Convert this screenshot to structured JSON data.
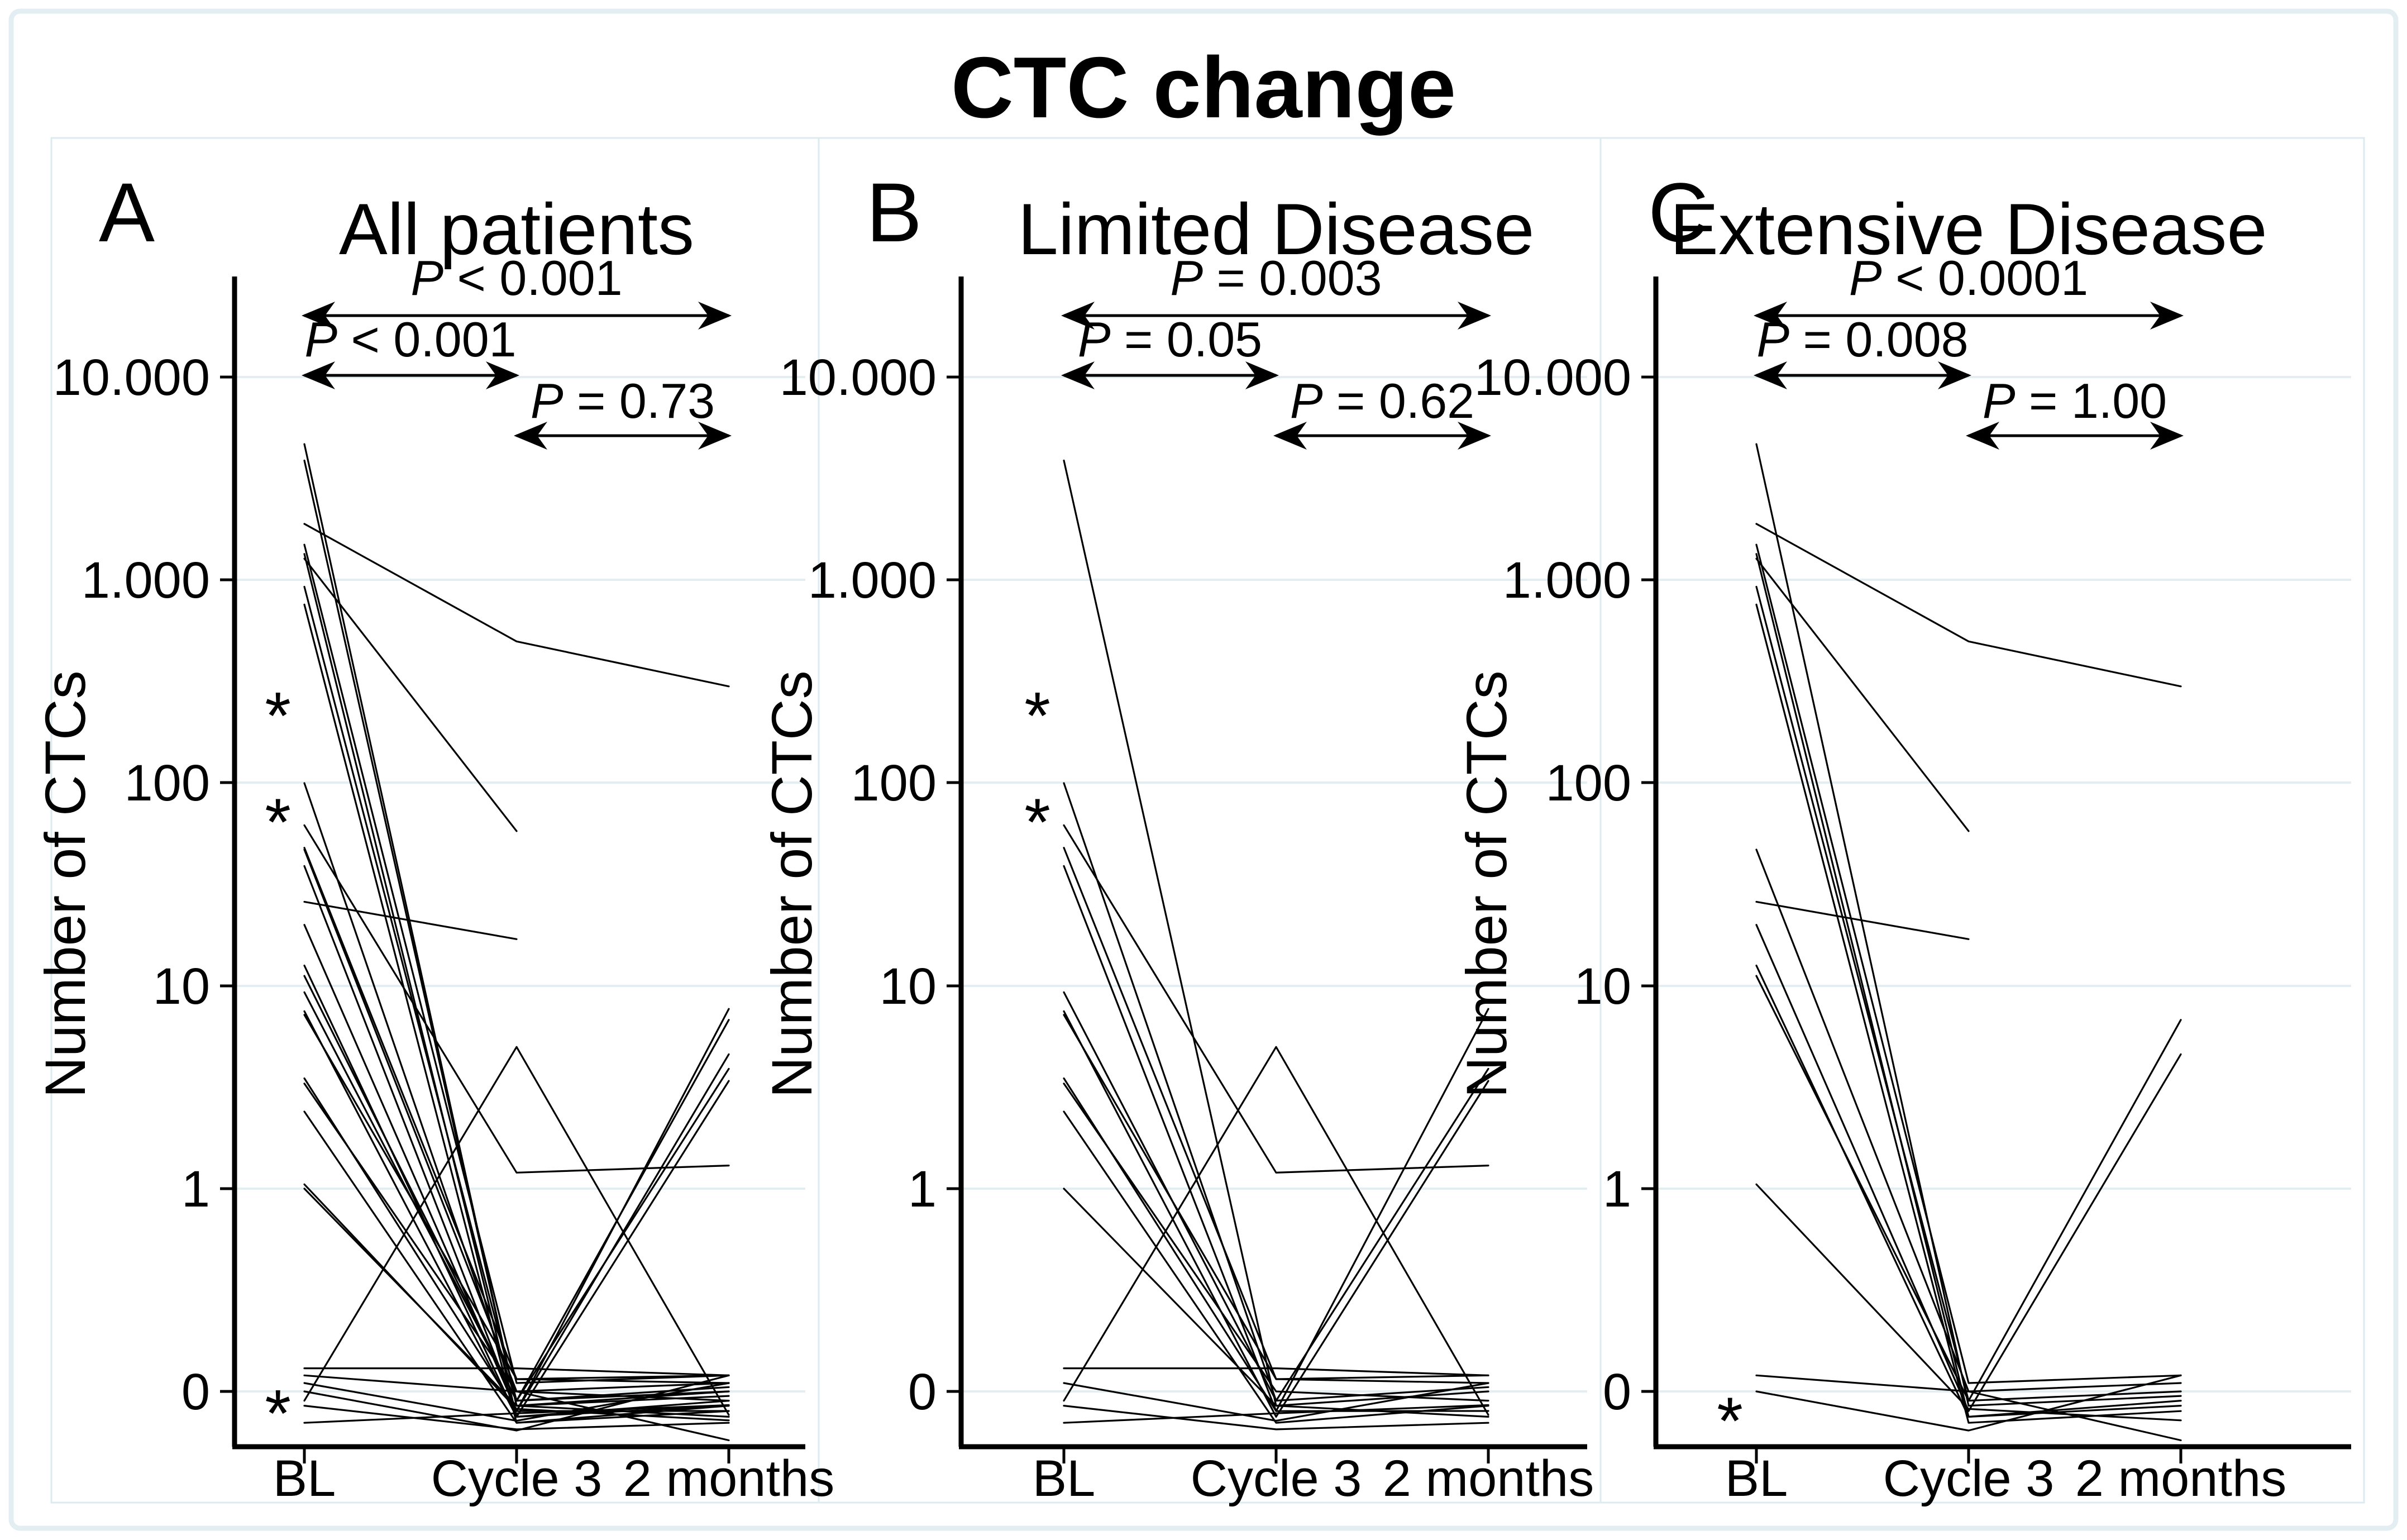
{
  "figure": {
    "title": "CTC change",
    "background": "#ffffff",
    "frame_color": "#e3eef2",
    "cell_border_color": "#dcebf0",
    "grid_color": "#e2eef2",
    "line_color": "#000000"
  },
  "chart_data": [
    {
      "type": "line",
      "panel_label": "A",
      "title": "All patients",
      "x_categories": [
        "BL",
        "Cycle 3",
        "2 months"
      ],
      "ylabel": "Number of CTCs",
      "y_tick_labels": [
        "10.000",
        "1.000",
        "100",
        "10",
        "1",
        "0"
      ],
      "y_scale_note": "log10 axis; the '0' tick sits one decade below 1; zero CTC counts are plotted on the 0 line (pseudo-value 0.1); pseudo-values near 0.1 and negative values encode the figure's jitter around the 0 line",
      "grid": true,
      "p_annotations": [
        {
          "span": [
            "BL",
            "2 months"
          ],
          "label": "P < 0.001"
        },
        {
          "span": [
            "BL",
            "Cycle 3"
          ],
          "label": "P < 0.001"
        },
        {
          "span": [
            "Cycle 3",
            "2 months"
          ],
          "label": "P = 0.73"
        }
      ],
      "censor_asterisks": [
        {
          "at": "BL",
          "value": 235
        },
        {
          "at": "BL",
          "value": 70
        },
        {
          "at": "BL",
          "value": 0.085
        }
      ],
      "lines": [
        [
          3900,
          0.085,
          0.1
        ],
        [
          100,
          0.09,
          0.105
        ],
        [
          62,
          1.2,
          1.3
        ],
        [
          48,
          0.115,
          0.12
        ],
        [
          39,
          0.08,
          -0.1
        ],
        [
          9.3,
          0.09,
          3.9
        ],
        [
          7.5,
          0.075,
          3.4
        ],
        [
          7.2,
          0.115,
          0.11
        ],
        [
          3.5,
          0.08,
          7.7
        ],
        [
          3.3,
          0.1,
          0.09
        ],
        [
          2.4,
          0.07,
          0.085
        ],
        [
          1.0,
          0.085,
          0.075
        ],
        [
          0.09,
          5.0,
          -0.12
        ],
        [
          0.13,
          0.13,
          0.12
        ],
        [
          0.11,
          -0.15,
          0.11
        ],
        [
          0.085,
          0.065,
          0.07
        ],
        [
          0.07,
          0.078,
          -0.07
        ],
        [
          4700,
          0.085,
          0.095
        ],
        [
          1900,
          500,
          300
        ],
        [
          1500,
          0.11,
          0.12
        ],
        [
          1350,
          0.075,
          0.085
        ],
        [
          1280,
          58,
          null
        ],
        [
          930,
          0.09,
          0.1
        ],
        [
          760,
          0.07,
          0.08
        ],
        [
          47,
          0.1,
          0.11
        ],
        [
          26,
          17,
          null
        ],
        [
          20,
          0.08,
          4.6
        ],
        [
          12.6,
          0.075,
          0.09
        ],
        [
          11.2,
          0.09,
          6.8
        ],
        [
          1.05,
          0.082,
          0.072
        ],
        [
          0.1,
          -0.2,
          0.12
        ],
        [
          0.12,
          0.1,
          -0.25
        ]
      ]
    },
    {
      "type": "line",
      "panel_label": "B",
      "title": "Limited Disease",
      "x_categories": [
        "BL",
        "Cycle 3",
        "2 months"
      ],
      "ylabel": "Number of CTCs",
      "y_tick_labels": [
        "10.000",
        "1.000",
        "100",
        "10",
        "1",
        "0"
      ],
      "y_scale_note": "log10 axis; the '0' tick sits one decade below 1; zero CTC counts are plotted on the 0 line (pseudo-value 0.1)",
      "grid": true,
      "p_annotations": [
        {
          "span": [
            "BL",
            "2 months"
          ],
          "label": "P = 0.003"
        },
        {
          "span": [
            "BL",
            "Cycle 3"
          ],
          "label": "P = 0.05"
        },
        {
          "span": [
            "Cycle 3",
            "2 months"
          ],
          "label": "P = 0.62"
        }
      ],
      "censor_asterisks": [
        {
          "at": "BL",
          "value": 235
        },
        {
          "at": "BL",
          "value": 70
        }
      ],
      "lines": [
        [
          3900,
          0.085,
          0.1
        ],
        [
          100,
          0.09,
          0.105
        ],
        [
          62,
          1.2,
          1.3
        ],
        [
          48,
          0.115,
          0.12
        ],
        [
          39,
          0.08,
          -0.1
        ],
        [
          9.3,
          0.09,
          3.9
        ],
        [
          7.5,
          0.075,
          3.4
        ],
        [
          7.2,
          0.115,
          0.11
        ],
        [
          3.5,
          0.08,
          7.7
        ],
        [
          3.3,
          0.1,
          0.09
        ],
        [
          2.4,
          0.07,
          0.085
        ],
        [
          1.0,
          0.085,
          0.075
        ],
        [
          0.09,
          5.0,
          -0.12
        ],
        [
          0.13,
          0.13,
          0.12
        ],
        [
          0.11,
          -0.15,
          0.11
        ],
        [
          0.085,
          0.065,
          0.07
        ],
        [
          0.07,
          0.078,
          -0.07
        ]
      ]
    },
    {
      "type": "line",
      "panel_label": "C",
      "title": "Extensive Disease",
      "x_categories": [
        "BL",
        "Cycle 3",
        "2 months"
      ],
      "ylabel": "Number of CTCs",
      "y_tick_labels": [
        "10.000",
        "1.000",
        "100",
        "10",
        "1",
        "0"
      ],
      "y_scale_note": "log10 axis; the '0' tick sits one decade below 1; zero CTC counts are plotted on the 0 line (pseudo-value 0.1)",
      "grid": true,
      "p_annotations": [
        {
          "span": [
            "BL",
            "2 months"
          ],
          "label": "P < 0.0001"
        },
        {
          "span": [
            "BL",
            "Cycle 3"
          ],
          "label": "P = 0.008"
        },
        {
          "span": [
            "Cycle 3",
            "2 months"
          ],
          "label": "P = 1.00"
        }
      ],
      "censor_asterisks": [
        {
          "at": "BL",
          "value": 0.078
        }
      ],
      "lines": [
        [
          4700,
          0.085,
          0.095
        ],
        [
          1900,
          500,
          300
        ],
        [
          1500,
          0.11,
          0.12
        ],
        [
          1350,
          0.075,
          0.085
        ],
        [
          1280,
          58,
          null
        ],
        [
          930,
          0.09,
          0.1
        ],
        [
          760,
          0.07,
          0.08
        ],
        [
          47,
          0.1,
          0.11
        ],
        [
          26,
          17,
          null
        ],
        [
          20,
          0.08,
          4.6
        ],
        [
          12.6,
          0.075,
          0.09
        ],
        [
          11.2,
          0.09,
          6.8
        ],
        [
          1.05,
          0.082,
          0.072
        ],
        [
          0.1,
          -0.2,
          0.12
        ],
        [
          0.12,
          0.1,
          -0.25
        ]
      ]
    }
  ]
}
